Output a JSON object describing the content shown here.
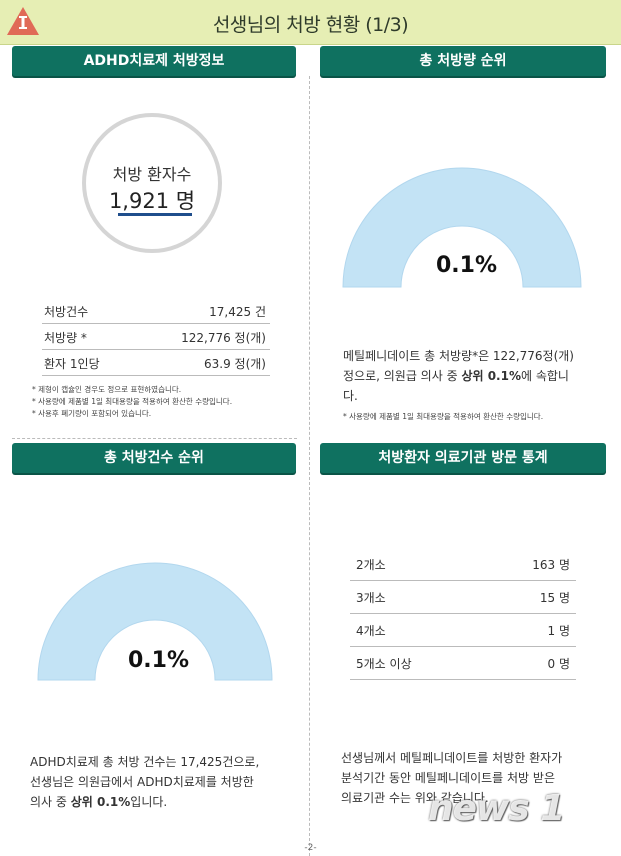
{
  "page": {
    "title": "선생님의 처방 현황 (1/3)",
    "page_number": "-2-",
    "watermark": "news 1",
    "colors": {
      "header": "#0f7160",
      "title_bar": "#e6eeb4",
      "gauge_fill": "#c3e3f5",
      "warning": "#e06a57"
    }
  },
  "prescription_info": {
    "header": "ADHD치료제 처방정보",
    "patients_label": "처방 환자수",
    "patients_value": "1,921 명",
    "rows": [
      {
        "label": "처방건수",
        "value": "17,425 건"
      },
      {
        "label": "처방량 *",
        "value": "122,776 정(개)"
      },
      {
        "label": "환자 1인당",
        "value": "63.9 정(개)"
      }
    ],
    "notes": [
      "* 제형이 캡슐인 경우도 정으로 표현하였습니다.",
      "* 사용량에 제품별 1일 최대용량을 적용하여 환산한 수량입니다.",
      "* 사용후 폐기량이 포함되어 있습니다."
    ]
  },
  "volume_rank": {
    "header": "총 처방량 순위",
    "gauge_value": "0.1%",
    "text_1": "메틸페니데이트 총 처방량*은 122,776정(개)",
    "text_2a": "정으로, 의원급 의사 중 ",
    "text_2b": "상위 0.1%",
    "text_2c": "에 속합니",
    "text_3": "다.",
    "note": "* 사용량에 제품별 1일 최대용량을 적용하여 환산한 수량입니다."
  },
  "count_rank": {
    "header": "총 처방건수 순위",
    "gauge_value": "0.1%",
    "text_1": "ADHD치료제 총 처방 건수는 17,425건으로,",
    "text_2": "선생님은 의원급에서 ADHD치료제를 처방한",
    "text_3a": "의사 중 ",
    "text_3b": "상위 0.1%",
    "text_3c": "입니다."
  },
  "visit_stats": {
    "header": "처방환자 의료기관 방문 통계",
    "rows": [
      {
        "label": "2개소",
        "value": "163 명"
      },
      {
        "label": "3개소",
        "value": "15 명"
      },
      {
        "label": "4개소",
        "value": "1 명"
      },
      {
        "label": "5개소 이상",
        "value": "0 명"
      }
    ],
    "text_1": "선생님께서 메틸페니데이트를 처방한 환자가",
    "text_2": "분석기간 동안 메틸페니데이트를 처방 받은",
    "text_3": "의료기관 수는 위와 같습니다."
  }
}
